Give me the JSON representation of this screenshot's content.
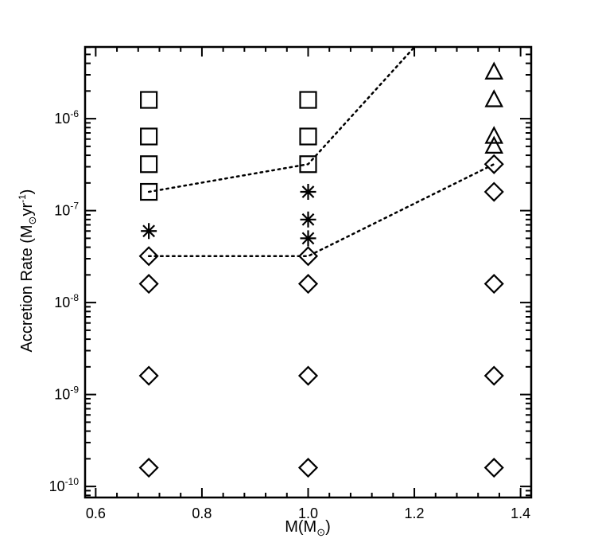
{
  "chart_data": {
    "type": "scatter",
    "xlabel": "M(M",
    "xlabel_sub": "⊙",
    "xlabel_close": ")",
    "ylabel": "Accretion Rate (M",
    "ylabel_sub": "⊙",
    "ylabel_mid": "yr",
    "ylabel_sup": "-1",
    "ylabel_close": ")",
    "xlim": [
      0.58,
      1.42
    ],
    "ylim_log10": [
      -10.12,
      -5.22
    ],
    "y_scale": "log",
    "x_ticks": [
      0.6,
      0.8,
      1.0,
      1.2,
      1.4
    ],
    "x_tick_labels": [
      "0.6",
      "0.8",
      "1.0",
      "1.2",
      "1.4"
    ],
    "y_ticks_log10": [
      -10,
      -9,
      -8,
      -7,
      -6
    ],
    "y_tick_labels": [
      {
        "base": "10",
        "exp": "-10"
      },
      {
        "base": "10",
        "exp": "-9"
      },
      {
        "base": "10",
        "exp": "-8"
      },
      {
        "base": "10",
        "exp": "-7"
      },
      {
        "base": "10",
        "exp": "-6"
      }
    ],
    "grid": false,
    "series": [
      {
        "marker": "square",
        "points": [
          [
            0.7,
            1.6e-06
          ],
          [
            0.7,
            6.4e-07
          ],
          [
            0.7,
            3.2e-07
          ],
          [
            0.7,
            1.6e-07
          ],
          [
            1.0,
            1.6e-06
          ],
          [
            1.0,
            6.4e-07
          ],
          [
            1.0,
            3.2e-07
          ]
        ]
      },
      {
        "marker": "asterisk",
        "points": [
          [
            0.7,
            6e-08
          ],
          [
            1.0,
            1.6e-07
          ],
          [
            1.0,
            8e-08
          ],
          [
            1.0,
            5e-08
          ]
        ]
      },
      {
        "marker": "diamond",
        "points": [
          [
            0.7,
            3.2e-08
          ],
          [
            0.7,
            1.6e-08
          ],
          [
            0.7,
            1.6e-09
          ],
          [
            0.7,
            1.6e-10
          ],
          [
            1.0,
            3.2e-08
          ],
          [
            1.0,
            1.6e-08
          ],
          [
            1.0,
            1.6e-09
          ],
          [
            1.0,
            1.6e-10
          ],
          [
            1.35,
            3.2e-07
          ],
          [
            1.35,
            1.6e-07
          ],
          [
            1.35,
            1.6e-08
          ],
          [
            1.35,
            1.6e-09
          ],
          [
            1.35,
            1.6e-10
          ]
        ]
      },
      {
        "marker": "triangle",
        "points": [
          [
            1.35,
            3.2e-06
          ],
          [
            1.35,
            1.6e-06
          ],
          [
            1.35,
            6.4e-07
          ],
          [
            1.35,
            5e-07
          ]
        ]
      }
    ],
    "boundary_lines": [
      {
        "style": "dotted",
        "points": [
          [
            0.7,
            1.6e-07
          ],
          [
            1.0,
            3.2e-07
          ],
          [
            1.2,
            6e-06
          ]
        ]
      },
      {
        "style": "dotted",
        "points": [
          [
            0.7,
            3.2e-08
          ],
          [
            1.0,
            3.2e-08
          ],
          [
            1.35,
            3.2e-07
          ]
        ]
      }
    ]
  }
}
